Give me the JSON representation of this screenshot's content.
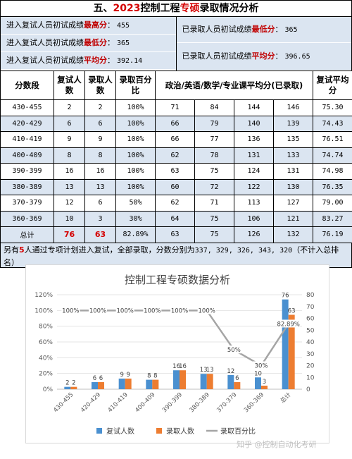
{
  "title": {
    "prefix": "五、",
    "year": "2023",
    "mid": "控制工程",
    "major": "专硕",
    "suffix": "录取情况分析"
  },
  "stats": {
    "left": [
      {
        "label": "进入复试人员初试成绩",
        "key": "最高分",
        "sep": "：",
        "value": "455"
      },
      {
        "label": "进入复试人员初试成绩",
        "key": "最低分",
        "sep": "：",
        "value": "365"
      },
      {
        "label": "进入复试人员初试成绩",
        "key": "平均分",
        "sep": "：",
        "value": "392.14"
      }
    ],
    "right": [
      {
        "label": "已录取人员初试成绩",
        "key": "最低分",
        "sep": "：",
        "value": "365"
      },
      {
        "label": "已录取人员初试成绩",
        "key": "平均分",
        "sep": "：",
        "value": "396.65"
      }
    ]
  },
  "table": {
    "headers": [
      "分数段",
      "复试人数",
      "录取人数",
      "录取百分比",
      "政治/英语/数学/专业课平均分(已录取)",
      "复试平均分"
    ],
    "rows": [
      [
        "430-455",
        "2",
        "2",
        "100%",
        "71",
        "84",
        "144",
        "146",
        "75.30"
      ],
      [
        "420-429",
        "6",
        "6",
        "100%",
        "66",
        "79",
        "140",
        "139",
        "74.43"
      ],
      [
        "410-419",
        "9",
        "9",
        "100%",
        "66",
        "77",
        "136",
        "135",
        "76.51"
      ],
      [
        "400-409",
        "8",
        "8",
        "100%",
        "62",
        "78",
        "131",
        "133",
        "74.74"
      ],
      [
        "390-399",
        "16",
        "16",
        "100%",
        "63",
        "75",
        "124",
        "131",
        "74.98"
      ],
      [
        "380-389",
        "13",
        "13",
        "100%",
        "60",
        "72",
        "122",
        "130",
        "76.35"
      ],
      [
        "370-379",
        "12",
        "6",
        "50%",
        "62",
        "71",
        "113",
        "127",
        "79.00"
      ],
      [
        "360-369",
        "10",
        "3",
        "30%",
        "64",
        "75",
        "106",
        "121",
        "83.27"
      ]
    ],
    "total": [
      "总计",
      "76",
      "63",
      "82.89%",
      "63",
      "75",
      "126",
      "132",
      "76.19"
    ]
  },
  "note": {
    "pre": "另有",
    "count": "5",
    "mid": "人通过专项计划进入复试，全部录取，分数分别为",
    "scores": "337, 329, 326, 343, 320",
    "post": "（不计入总排名）"
  },
  "chart_data": {
    "type": "bar",
    "title": "控制工程专硕数据分析",
    "categories": [
      "430-455",
      "420-429",
      "410-419",
      "400-409",
      "390-399",
      "380-389",
      "370-379",
      "360-369",
      "总计"
    ],
    "series": [
      {
        "name": "复试人数",
        "kind": "bar",
        "axis": "right",
        "color": "#4a90d0",
        "values": [
          2,
          6,
          9,
          8,
          16,
          13,
          12,
          10,
          76
        ]
      },
      {
        "name": "录取人数",
        "kind": "bar",
        "axis": "right",
        "color": "#ed7d31",
        "values": [
          2,
          6,
          9,
          8,
          16,
          13,
          6,
          3,
          63
        ]
      },
      {
        "name": "录取百分比",
        "kind": "line",
        "axis": "left",
        "color": "#a5a5a5",
        "values": [
          100,
          100,
          100,
          100,
          100,
          100,
          50,
          30,
          82.89
        ]
      }
    ],
    "point_labels": [
      "100%",
      "100%",
      "100%",
      "100%",
      "100%",
      "100%",
      "50%",
      "30%",
      "82.89%"
    ],
    "left_axis": {
      "min": 0,
      "max": 120,
      "step": 20,
      "ticks": [
        "0%",
        "20%",
        "40%",
        "60%",
        "80%",
        "100%",
        "120%"
      ]
    },
    "right_axis": {
      "min": 0,
      "max": 80,
      "step": 10,
      "ticks": [
        "0",
        "10",
        "20",
        "30",
        "40",
        "50",
        "60",
        "70",
        "80"
      ]
    },
    "grid": true,
    "legend": "bottom"
  },
  "watermark": "知乎 @控制自动化考研"
}
